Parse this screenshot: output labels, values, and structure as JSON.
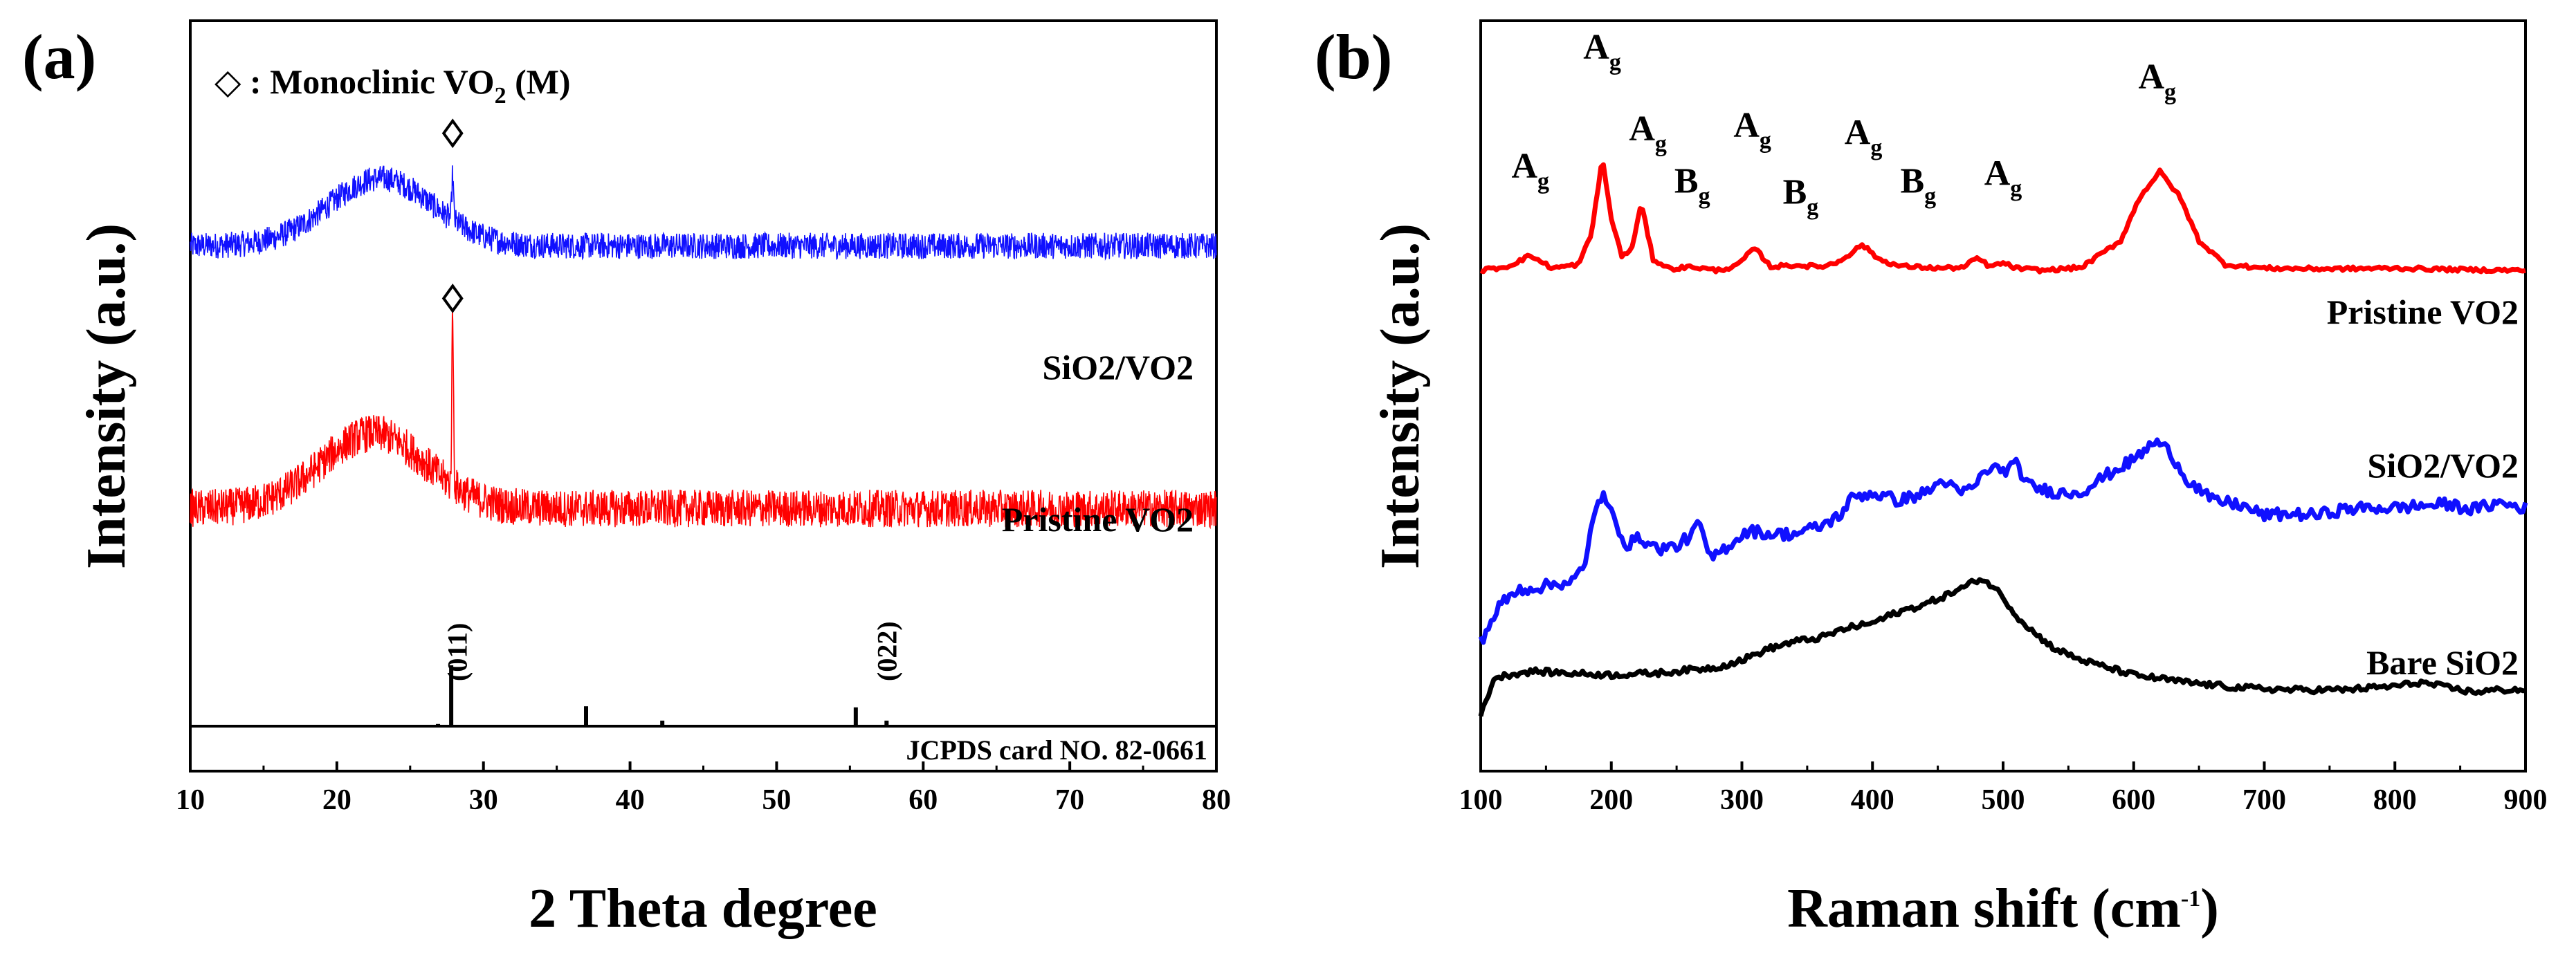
{
  "panels": {
    "a": {
      "label": "(a)"
    },
    "b": {
      "label": "(b)"
    }
  },
  "chart_data": [
    {
      "id": "a",
      "type": "line",
      "title": "(a)",
      "xlabel": "2 Theta degree",
      "ylabel": "Intensity (a.u.)",
      "xlim": [
        10,
        80
      ],
      "xticks": [
        10,
        20,
        30,
        40,
        50,
        60,
        70,
        80
      ],
      "legend_note": {
        "symbol": "◇",
        "text": " : Monoclinic VO",
        "sub": "2",
        "suffix": " (M)"
      },
      "series": [
        {
          "name": "SiO2/VO2",
          "color": "#1010ff",
          "baseline": 0.7,
          "hump_center": 23,
          "hump_width": 5,
          "hump_height": 0.09,
          "noise": 0.035,
          "peaks": [
            {
              "x": 27.9,
              "h": 0.06
            }
          ],
          "marker_x": 27.9
        },
        {
          "name": "Pristine VO2",
          "color": "#ff0000",
          "baseline": 0.35,
          "hump_center": 22.5,
          "hump_width": 5,
          "hump_height": 0.1,
          "noise": 0.05,
          "peaks": [
            {
              "x": 27.9,
              "h": 0.23
            }
          ],
          "marker_x": 27.9
        }
      ],
      "reference": {
        "name": "JCPDS card NO. 82-0661",
        "sticks": [
          {
            "x": 26.9,
            "h": 0.02
          },
          {
            "x": 27.8,
            "h": 0.55
          },
          {
            "x": 37.0,
            "h": 0.18
          },
          {
            "x": 42.2,
            "h": 0.05
          },
          {
            "x": 55.4,
            "h": 0.17
          },
          {
            "x": 57.5,
            "h": 0.05
          }
        ],
        "hkl_labels": [
          {
            "x": 28.2,
            "text": "(011)"
          },
          {
            "x": 57.5,
            "text": "(022)"
          }
        ]
      }
    },
    {
      "id": "b",
      "type": "line",
      "title": "(b)",
      "xlabel": "Raman shift (cm",
      "xlabel_sup": "-1",
      "xlabel_suffix": ")",
      "ylabel": "Intensity (a.u.)",
      "xlim": [
        100,
        900
      ],
      "xticks": [
        100,
        200,
        300,
        400,
        500,
        600,
        700,
        800,
        900
      ],
      "series": [
        {
          "name": "Pristine VO2",
          "color": "#ff0000",
          "points": [
            [
              100,
              0.6
            ],
            [
              120,
              0.605
            ],
            [
              138,
              0.62
            ],
            [
              155,
              0.603
            ],
            [
              175,
              0.608
            ],
            [
              185,
              0.65
            ],
            [
              193,
              0.752
            ],
            [
              200,
              0.67
            ],
            [
              208,
              0.62
            ],
            [
              215,
              0.625
            ],
            [
              223,
              0.69
            ],
            [
              232,
              0.615
            ],
            [
              245,
              0.602
            ],
            [
              262,
              0.605
            ],
            [
              280,
              0.6
            ],
            [
              295,
              0.605
            ],
            [
              310,
              0.63
            ],
            [
              322,
              0.605
            ],
            [
              340,
              0.607
            ],
            [
              360,
              0.605
            ],
            [
              372,
              0.61
            ],
            [
              385,
              0.625
            ],
            [
              392,
              0.635
            ],
            [
              405,
              0.615
            ],
            [
              420,
              0.606
            ],
            [
              450,
              0.603
            ],
            [
              470,
              0.604
            ],
            [
              480,
              0.617
            ],
            [
              490,
              0.605
            ],
            [
              500,
              0.61
            ],
            [
              510,
              0.603
            ],
            [
              530,
              0.6
            ],
            [
              560,
              0.604
            ],
            [
              590,
              0.64
            ],
            [
              605,
              0.7
            ],
            [
              620,
              0.733
            ],
            [
              635,
              0.7
            ],
            [
              650,
              0.64
            ],
            [
              670,
              0.608
            ],
            [
              700,
              0.603
            ],
            [
              750,
              0.602
            ],
            [
              800,
              0.603
            ],
            [
              850,
              0.601
            ],
            [
              900,
              0.6
            ]
          ],
          "noise": 0.0025
        },
        {
          "name": "SiO2/VO2",
          "color": "#1010ff",
          "points": [
            [
              100,
              0.1
            ],
            [
              115,
              0.15
            ],
            [
              130,
              0.17
            ],
            [
              150,
              0.175
            ],
            [
              170,
              0.182
            ],
            [
              180,
              0.2
            ],
            [
              186,
              0.27
            ],
            [
              193,
              0.298
            ],
            [
              202,
              0.265
            ],
            [
              212,
              0.23
            ],
            [
              222,
              0.24
            ],
            [
              235,
              0.225
            ],
            [
              250,
              0.228
            ],
            [
              262,
              0.245
            ],
            [
              268,
              0.26
            ],
            [
              275,
              0.21
            ],
            [
              290,
              0.23
            ],
            [
              305,
              0.25
            ],
            [
              320,
              0.245
            ],
            [
              340,
              0.245
            ],
            [
              360,
              0.255
            ],
            [
              375,
              0.27
            ],
            [
              385,
              0.295
            ],
            [
              400,
              0.3
            ],
            [
              420,
              0.29
            ],
            [
              440,
              0.3
            ],
            [
              455,
              0.318
            ],
            [
              465,
              0.3
            ],
            [
              475,
              0.305
            ],
            [
              490,
              0.335
            ],
            [
              500,
              0.33
            ],
            [
              510,
              0.338
            ],
            [
              520,
              0.31
            ],
            [
              530,
              0.305
            ],
            [
              545,
              0.3
            ],
            [
              560,
              0.302
            ],
            [
              580,
              0.325
            ],
            [
              600,
              0.345
            ],
            [
              617,
              0.37
            ],
            [
              628,
              0.355
            ],
            [
              640,
              0.32
            ],
            [
              660,
              0.29
            ],
            [
              680,
              0.285
            ],
            [
              700,
              0.27
            ],
            [
              720,
              0.272
            ],
            [
              740,
              0.27
            ],
            [
              760,
              0.278
            ],
            [
              780,
              0.28
            ],
            [
              800,
              0.28
            ],
            [
              820,
              0.283
            ],
            [
              840,
              0.285
            ],
            [
              860,
              0.278
            ],
            [
              880,
              0.287
            ],
            [
              900,
              0.28
            ]
          ],
          "noise": 0.008
        },
        {
          "name": "Bare SiO2",
          "color": "#000000",
          "points": [
            [
              100,
              0.0
            ],
            [
              110,
              0.05
            ],
            [
              120,
              0.055
            ],
            [
              140,
              0.06
            ],
            [
              160,
              0.058
            ],
            [
              200,
              0.055
            ],
            [
              240,
              0.058
            ],
            [
              260,
              0.062
            ],
            [
              280,
              0.065
            ],
            [
              300,
              0.075
            ],
            [
              320,
              0.09
            ],
            [
              340,
              0.1
            ],
            [
              360,
              0.105
            ],
            [
              380,
              0.118
            ],
            [
              400,
              0.125
            ],
            [
              420,
              0.14
            ],
            [
              440,
              0.15
            ],
            [
              460,
              0.165
            ],
            [
              472,
              0.175
            ],
            [
              482,
              0.185
            ],
            [
              492,
              0.175
            ],
            [
              500,
              0.16
            ],
            [
              510,
              0.135
            ],
            [
              525,
              0.11
            ],
            [
              540,
              0.09
            ],
            [
              560,
              0.075
            ],
            [
              600,
              0.055
            ],
            [
              640,
              0.045
            ],
            [
              680,
              0.038
            ],
            [
              720,
              0.035
            ],
            [
              760,
              0.035
            ],
            [
              800,
              0.04
            ],
            [
              820,
              0.045
            ],
            [
              840,
              0.038
            ],
            [
              860,
              0.032
            ],
            [
              880,
              0.035
            ],
            [
              900,
              0.035
            ]
          ],
          "noise": 0.004
        }
      ],
      "peak_labels": [
        {
          "x": 138,
          "y": 0.725,
          "main": "A",
          "sub": "g"
        },
        {
          "x": 193,
          "y": 0.885,
          "main": "A",
          "sub": "g"
        },
        {
          "x": 228,
          "y": 0.775,
          "main": "A",
          "sub": "g"
        },
        {
          "x": 262,
          "y": 0.705,
          "main": "B",
          "sub": "g"
        },
        {
          "x": 308,
          "y": 0.78,
          "main": "A",
          "sub": "g"
        },
        {
          "x": 345,
          "y": 0.69,
          "main": "B",
          "sub": "g"
        },
        {
          "x": 393,
          "y": 0.77,
          "main": "A",
          "sub": "g"
        },
        {
          "x": 435,
          "y": 0.705,
          "main": "B",
          "sub": "g"
        },
        {
          "x": 500,
          "y": 0.715,
          "main": "A",
          "sub": "g"
        },
        {
          "x": 618,
          "y": 0.845,
          "main": "A",
          "sub": "g"
        }
      ]
    }
  ]
}
